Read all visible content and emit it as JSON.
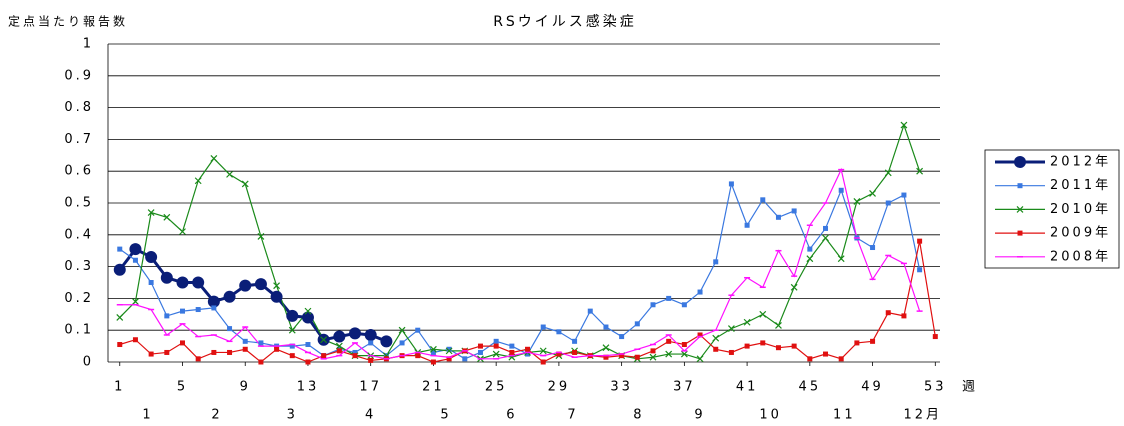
{
  "chart_data": {
    "type": "line",
    "title": "RSウイルス感染症",
    "y_label": "定点当たり報告数",
    "x_label": "週",
    "x": [
      1,
      2,
      3,
      4,
      5,
      6,
      7,
      8,
      9,
      10,
      11,
      12,
      13,
      14,
      15,
      16,
      17,
      18,
      19,
      20,
      21,
      22,
      23,
      24,
      25,
      26,
      27,
      28,
      29,
      30,
      31,
      32,
      33,
      34,
      35,
      36,
      37,
      38,
      39,
      40,
      41,
      42,
      43,
      44,
      45,
      46,
      47,
      48,
      49,
      50,
      51,
      52,
      53
    ],
    "xlim": [
      0.25,
      53.3
    ],
    "xticks": [
      1,
      5,
      9,
      13,
      17,
      21,
      25,
      29,
      33,
      37,
      41,
      45,
      49,
      53
    ],
    "ylim": [
      0,
      1
    ],
    "yticks": [
      0,
      0.1,
      0.2,
      0.3,
      0.4,
      0.5,
      0.6,
      0.7,
      0.8,
      0.9,
      1
    ],
    "grid": true,
    "legend": "right",
    "months": {
      "labels": [
        "1",
        "2",
        "3",
        "4",
        "5",
        "6",
        "7",
        "8",
        "9",
        "10",
        "11",
        "12月"
      ],
      "x": [
        2.8,
        7.2,
        12,
        17,
        21.8,
        26,
        29.9,
        34.1,
        38,
        42.5,
        47.2,
        52.2
      ]
    },
    "series": [
      {
        "name": "2012年",
        "color": "#0a1e78",
        "marker": "circle",
        "line_width": 3,
        "values": [
          0.29,
          0.355,
          0.33,
          0.265,
          0.25,
          0.25,
          0.19,
          0.205,
          0.24,
          0.245,
          0.205,
          0.145,
          0.14,
          0.07,
          0.08,
          0.09,
          0.085,
          0.065,
          null,
          null,
          null,
          null,
          null,
          null,
          null,
          null,
          null,
          null,
          null,
          null,
          null,
          null,
          null,
          null,
          null,
          null,
          null,
          null,
          null,
          null,
          null,
          null,
          null,
          null,
          null,
          null,
          null,
          null,
          null,
          null,
          null,
          null,
          null
        ]
      },
      {
        "name": "2011年",
        "color": "#3a78e0",
        "marker": "square",
        "line_width": 1.2,
        "values": [
          0.355,
          0.32,
          0.25,
          0.145,
          0.16,
          0.165,
          0.17,
          0.105,
          0.065,
          0.06,
          0.05,
          0.05,
          0.055,
          0.02,
          0.04,
          0.03,
          0.06,
          0.02,
          0.06,
          0.1,
          0.03,
          0.04,
          0.01,
          0.03,
          0.065,
          0.05,
          0.025,
          0.11,
          0.095,
          0.065,
          0.16,
          0.11,
          0.08,
          0.12,
          0.18,
          0.2,
          0.18,
          0.22,
          0.315,
          0.56,
          0.43,
          0.51,
          0.455,
          0.475,
          0.355,
          0.42,
          0.54,
          0.39,
          0.36,
          0.5,
          0.525,
          0.29,
          null
        ]
      },
      {
        "name": "2010年",
        "color": "#1a8a1a",
        "marker": "x",
        "line_width": 1.2,
        "values": [
          0.14,
          0.19,
          0.47,
          0.455,
          0.41,
          0.57,
          0.64,
          0.59,
          0.56,
          0.395,
          0.24,
          0.1,
          0.16,
          0.07,
          0.05,
          0.02,
          0.02,
          0.02,
          0.1,
          0.03,
          0.04,
          0.035,
          0.035,
          0.01,
          0.025,
          0.015,
          0.03,
          0.035,
          0.02,
          0.035,
          0.02,
          0.045,
          0.02,
          0.01,
          0.015,
          0.025,
          0.025,
          0.01,
          0.075,
          0.105,
          0.125,
          0.15,
          0.115,
          0.235,
          0.325,
          0.39,
          0.325,
          0.505,
          0.53,
          0.595,
          0.745,
          0.6,
          null
        ]
      },
      {
        "name": "2009年",
        "color": "#e01010",
        "marker": "square",
        "line_width": 1.2,
        "values": [
          0.055,
          0.07,
          0.025,
          0.03,
          0.06,
          0.01,
          0.03,
          0.03,
          0.04,
          0,
          0.04,
          0.02,
          0,
          0.02,
          0.035,
          0.02,
          0.005,
          0.01,
          0.02,
          0.02,
          0,
          0.01,
          0.035,
          0.05,
          0.05,
          0.03,
          0.04,
          0,
          0.025,
          0.03,
          0.02,
          0.015,
          0.02,
          0.015,
          0.035,
          0.065,
          0.055,
          0.085,
          0.04,
          0.03,
          0.05,
          0.06,
          0.045,
          0.05,
          0.01,
          0.025,
          0.01,
          0.06,
          0.065,
          0.155,
          0.145,
          0.38,
          0.08
        ]
      },
      {
        "name": "2008年",
        "color": "#ff10ff",
        "marker": "dash",
        "line_width": 1.2,
        "values": [
          0.18,
          0.18,
          0.165,
          0.085,
          0.12,
          0.08,
          0.085,
          0.065,
          0.11,
          0.05,
          0.05,
          0.055,
          0.03,
          0.01,
          0.02,
          0.06,
          0.02,
          0.01,
          0.02,
          0.03,
          0.02,
          0.015,
          0.035,
          0.01,
          0.01,
          0.02,
          0.03,
          0.02,
          0.03,
          0.015,
          0.02,
          0.02,
          0.025,
          0.04,
          0.055,
          0.085,
          0.035,
          0.08,
          0.1,
          0.21,
          0.265,
          0.235,
          0.35,
          0.27,
          0.43,
          0.5,
          0.605,
          0.39,
          0.26,
          0.335,
          0.31,
          0.16,
          null
        ]
      }
    ]
  }
}
